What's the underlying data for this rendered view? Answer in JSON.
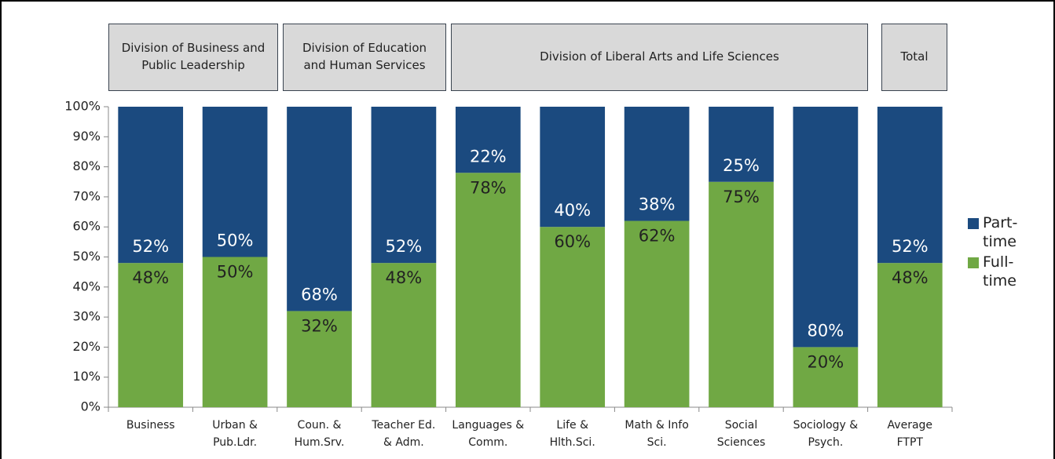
{
  "chart_data": {
    "type": "stacked_bar",
    "annotations": [
      "Division of Business and Public Leadership",
      "Division of Education and Human Services",
      "Division of Liberal Arts and Life Sciences",
      "Total"
    ],
    "categories": [
      [
        "Business"
      ],
      [
        "Urban &",
        "Pub.Ldr."
      ],
      [
        "Coun. &",
        "Hum.Srv."
      ],
      [
        "Teacher Ed.",
        "& Adm."
      ],
      [
        "Languages &",
        "Comm."
      ],
      [
        "Life &",
        "Hlth.Sci."
      ],
      [
        "Math & Info",
        "Sci."
      ],
      [
        "Social",
        "Sciences"
      ],
      [
        "Sociology &",
        "Psych."
      ],
      [
        "Average",
        "FTPT"
      ]
    ],
    "series": [
      {
        "name": "Full-time",
        "color": "#70a844",
        "values": [
          48,
          50,
          32,
          48,
          78,
          60,
          62,
          75,
          20,
          48
        ],
        "value_labels": [
          "48%",
          "50%",
          "32%",
          "48%",
          "78%",
          "60%",
          "62%",
          "75%",
          "20%",
          "48%"
        ]
      },
      {
        "name": "Part-time",
        "color": "#1b4a7f",
        "values": [
          52,
          50,
          68,
          52,
          22,
          40,
          38,
          25,
          80,
          52
        ],
        "value_labels": [
          "52%",
          "50%",
          "68%",
          "52%",
          "22%",
          "40%",
          "38%",
          "25%",
          "80%",
          "52%"
        ]
      }
    ],
    "ylim": [
      0,
      100
    ],
    "yticks": [
      {
        "value": 0,
        "label": "0%"
      },
      {
        "value": 10,
        "label": "10%"
      },
      {
        "value": 20,
        "label": "20%"
      },
      {
        "value": 30,
        "label": "30%"
      },
      {
        "value": 40,
        "label": "40%"
      },
      {
        "value": 50,
        "label": "50%"
      },
      {
        "value": 60,
        "label": "60%"
      },
      {
        "value": 70,
        "label": "70%"
      },
      {
        "value": 80,
        "label": "80%"
      },
      {
        "value": 90,
        "label": "90%"
      },
      {
        "value": 100,
        "label": "100%"
      }
    ],
    "grid": false,
    "legend": "right"
  }
}
